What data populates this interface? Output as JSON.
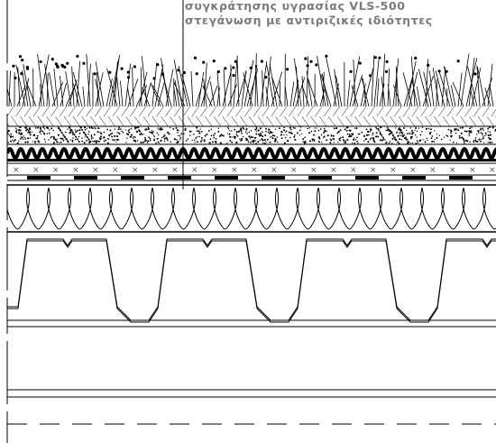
{
  "labels": {
    "line1": "συγκράτησης υγρασίας VLS-500",
    "line2": "στεγάνωση με αντιριζικές ιδιότητες"
  }
}
